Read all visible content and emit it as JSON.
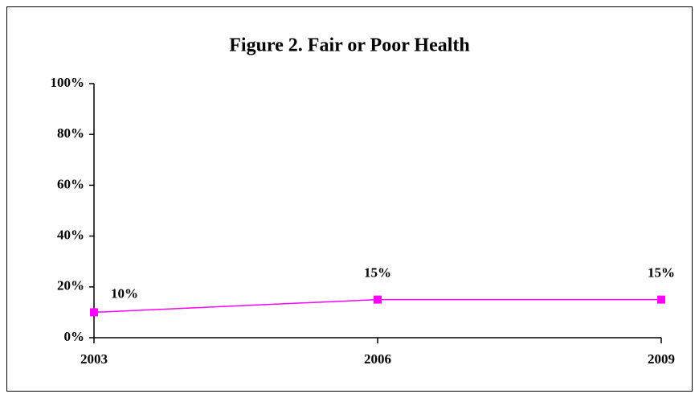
{
  "chart_data": {
    "type": "line",
    "title": "Figure 2. Fair or Poor Health",
    "categories": [
      "2003",
      "2006",
      "2009"
    ],
    "series": [
      {
        "color": "#ff00ff",
        "values": [
          10,
          15,
          15
        ],
        "value_labels": [
          "10%",
          "15%",
          "15%"
        ]
      }
    ],
    "ylim": [
      0,
      100
    ],
    "yticks": [
      {
        "value": 0,
        "label": "0%"
      },
      {
        "value": 20,
        "label": "20%"
      },
      {
        "value": 40,
        "label": "40%"
      },
      {
        "value": 60,
        "label": "60%"
      },
      {
        "value": 80,
        "label": "80%"
      },
      {
        "value": 100,
        "label": "100%"
      }
    ],
    "grid": false
  }
}
